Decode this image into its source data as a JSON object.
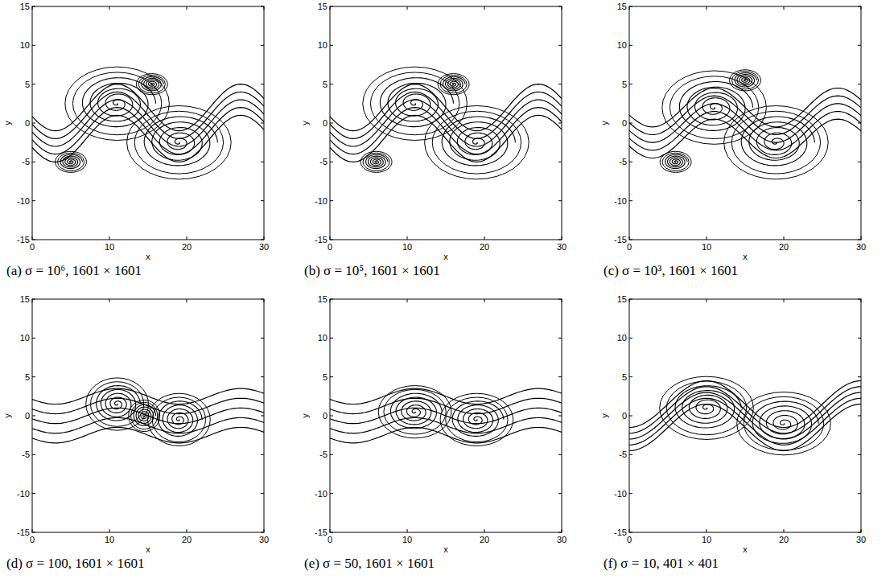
{
  "chart_data": [
    {
      "type": "contour",
      "caption": "(a) σ = 10⁶, 1601 × 1601",
      "x_label": "x",
      "y_label": "y",
      "xlim": [
        0,
        30
      ],
      "ylim": [
        -15,
        15
      ],
      "xticks": [
        0,
        10,
        20,
        30
      ],
      "yticks": [
        -15,
        -10,
        -5,
        0,
        5,
        10,
        15
      ],
      "shear_layer": {
        "amplitude": 3,
        "half_width": 2
      },
      "vortices": [
        {
          "x": 11,
          "y": 2.5,
          "rx": 5,
          "ry": 3.5
        },
        {
          "x": 19,
          "y": -2.5,
          "rx": 5,
          "ry": 3.5
        },
        {
          "x": 15.5,
          "y": 5,
          "rx": 1.5,
          "ry": 1
        },
        {
          "x": 5,
          "y": -5,
          "rx": 1.5,
          "ry": 1
        }
      ]
    },
    {
      "type": "contour",
      "caption": "(b) σ = 10⁵, 1601 × 1601",
      "x_label": "x",
      "y_label": "y",
      "xlim": [
        0,
        30
      ],
      "ylim": [
        -15,
        15
      ],
      "xticks": [
        0,
        10,
        20,
        30
      ],
      "yticks": [
        -15,
        -10,
        -5,
        0,
        5,
        10,
        15
      ],
      "shear_layer": {
        "amplitude": 3,
        "half_width": 2
      },
      "vortices": [
        {
          "x": 11,
          "y": 2.5,
          "rx": 5,
          "ry": 3.5
        },
        {
          "x": 19,
          "y": -2.5,
          "rx": 5,
          "ry": 3.5
        },
        {
          "x": 16,
          "y": 5,
          "rx": 1.5,
          "ry": 1
        },
        {
          "x": 6,
          "y": -5,
          "rx": 1.5,
          "ry": 1
        }
      ]
    },
    {
      "type": "contour",
      "caption": "(c) σ = 10³, 1601 × 1601",
      "x_label": "x",
      "y_label": "y",
      "xlim": [
        0,
        30
      ],
      "ylim": [
        -15,
        15
      ],
      "xticks": [
        0,
        10,
        20,
        30
      ],
      "yticks": [
        -15,
        -10,
        -5,
        0,
        5,
        10,
        15
      ],
      "shear_layer": {
        "amplitude": 2.5,
        "half_width": 2
      },
      "vortices": [
        {
          "x": 11,
          "y": 2,
          "rx": 5,
          "ry": 3.5
        },
        {
          "x": 19,
          "y": -2.5,
          "rx": 5,
          "ry": 3.5
        },
        {
          "x": 15,
          "y": 5.5,
          "rx": 1.5,
          "ry": 1
        },
        {
          "x": 6,
          "y": -5,
          "rx": 1.5,
          "ry": 1
        }
      ]
    },
    {
      "type": "contour",
      "caption": "(d) σ = 100, 1601 × 1601",
      "x_label": "x",
      "y_label": "y",
      "xlim": [
        0,
        30
      ],
      "ylim": [
        -15,
        15
      ],
      "xticks": [
        0,
        10,
        20,
        30
      ],
      "yticks": [
        -15,
        -10,
        -5,
        0,
        5,
        10,
        15
      ],
      "shear_layer": {
        "amplitude": 1,
        "half_width": 2.5
      },
      "vortices": [
        {
          "x": 11,
          "y": 1.5,
          "rx": 3,
          "ry": 2.5
        },
        {
          "x": 19,
          "y": -0.5,
          "rx": 3,
          "ry": 2.5
        },
        {
          "x": 14.5,
          "y": 0,
          "rx": 1.5,
          "ry": 1.5
        }
      ]
    },
    {
      "type": "contour",
      "caption": "(e) σ = 50, 1601 × 1601",
      "x_label": "x",
      "y_label": "y",
      "xlim": [
        0,
        30
      ],
      "ylim": [
        -15,
        15
      ],
      "xticks": [
        0,
        10,
        20,
        30
      ],
      "yticks": [
        -15,
        -10,
        -5,
        0,
        5,
        10,
        15
      ],
      "shear_layer": {
        "amplitude": 1,
        "half_width": 2.5
      },
      "vortices": [
        {
          "x": 11,
          "y": 0.5,
          "rx": 3.5,
          "ry": 2.5
        },
        {
          "x": 19,
          "y": -0.5,
          "rx": 3.5,
          "ry": 2.5
        }
      ]
    },
    {
      "type": "contour",
      "caption": "(f) σ = 10, 401 × 401",
      "x_label": "x",
      "y_label": "y",
      "xlim": [
        0,
        30
      ],
      "ylim": [
        -15,
        15
      ],
      "xticks": [
        0,
        10,
        20,
        30
      ],
      "yticks": [
        -15,
        -10,
        -5,
        0,
        5,
        10,
        15
      ],
      "shear_layer": {
        "amplitude": 3,
        "half_width": 1.5
      },
      "vortices": [
        {
          "x": 10,
          "y": 1,
          "rx": 4.5,
          "ry": 3
        },
        {
          "x": 20,
          "y": -1,
          "rx": 4.5,
          "ry": 3
        }
      ]
    }
  ]
}
